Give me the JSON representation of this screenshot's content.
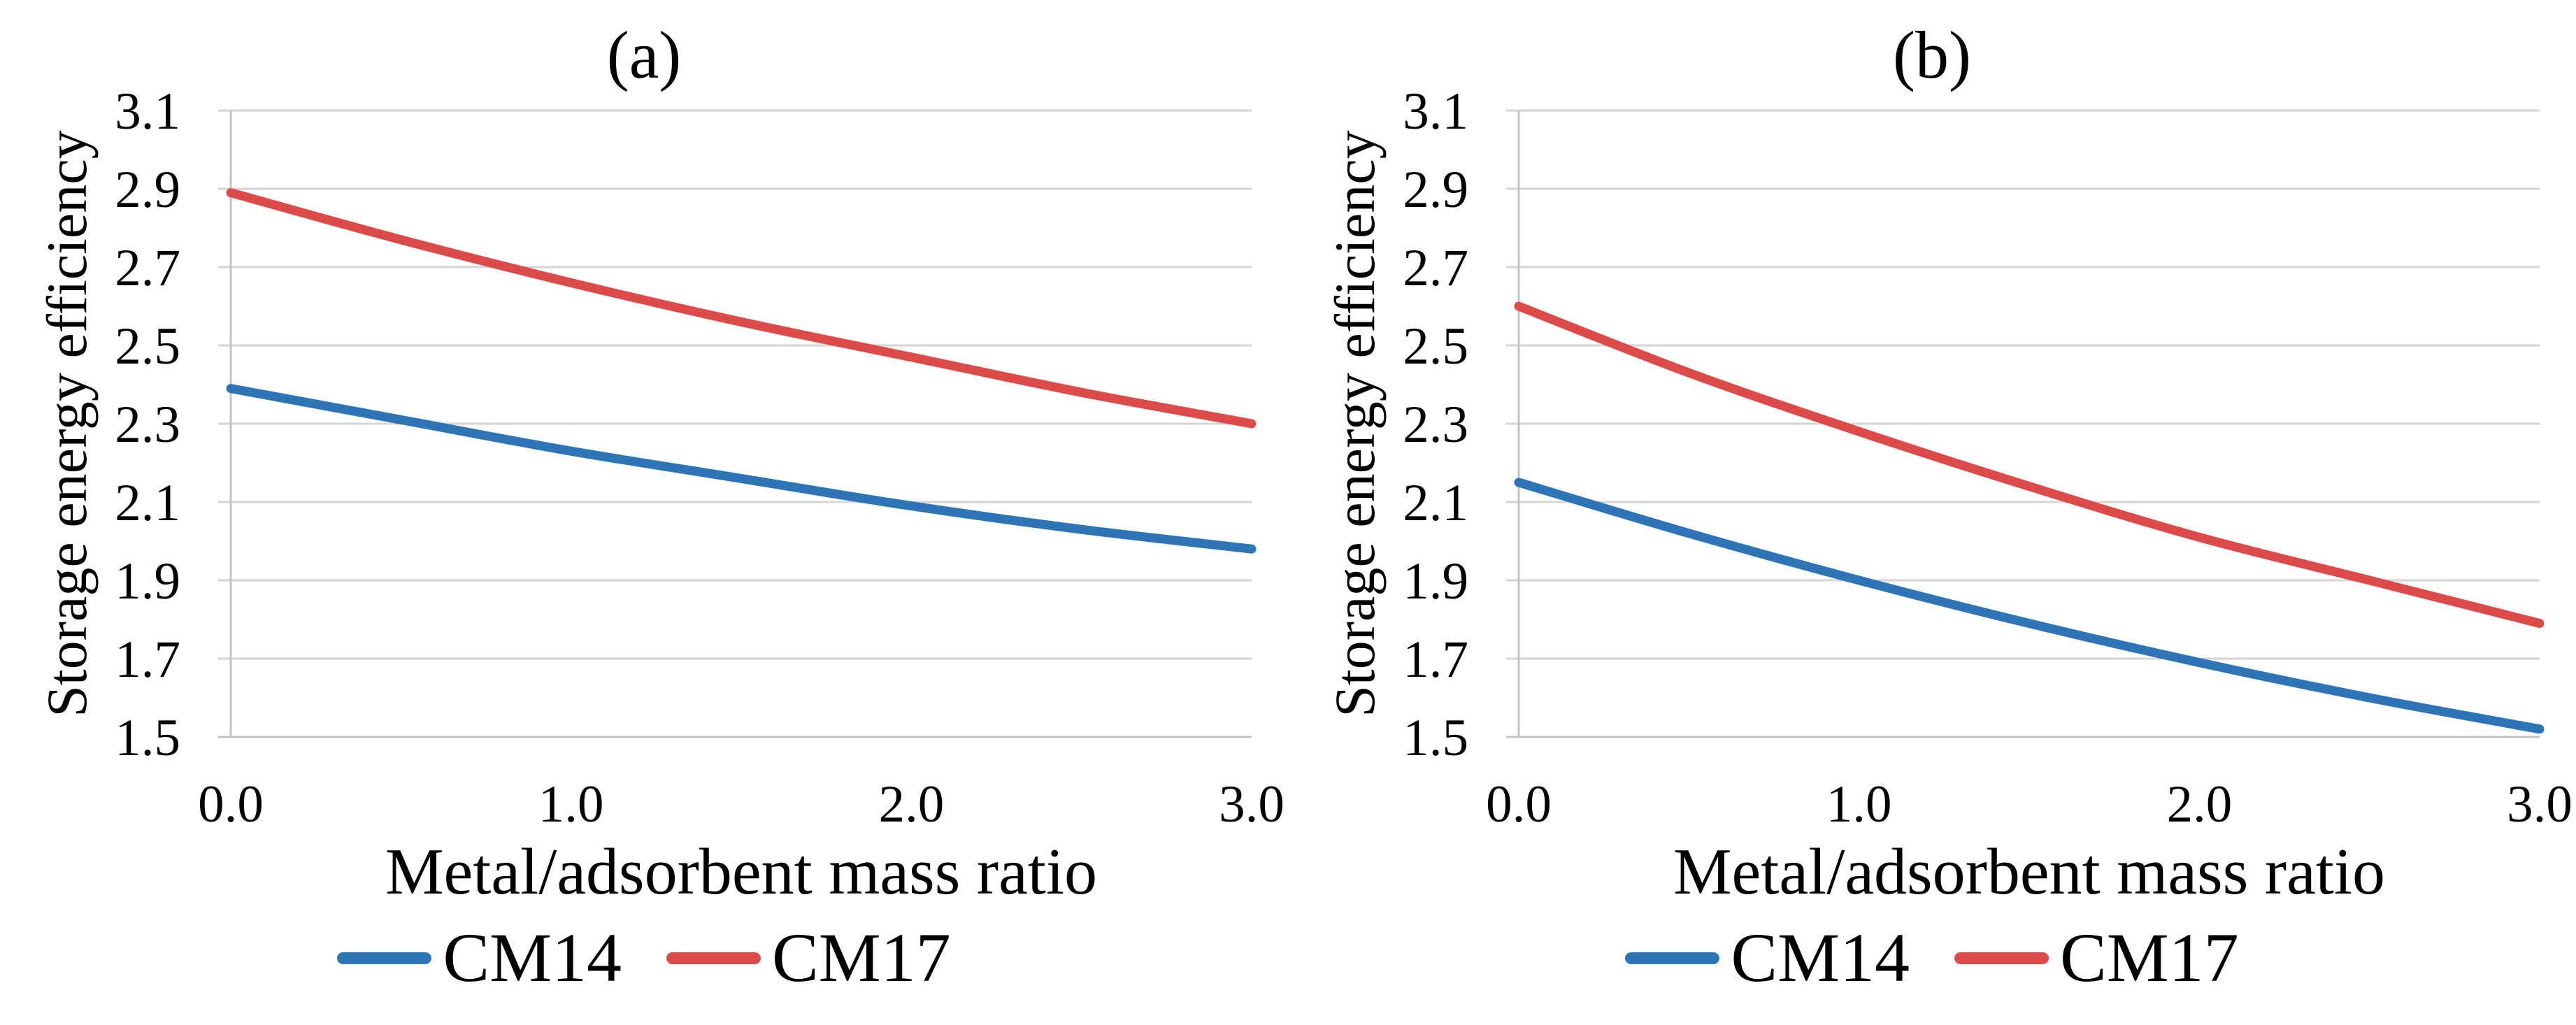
{
  "styles": {
    "background": "#ffffff",
    "text_color": "#000000",
    "gridline_color": "#d6d6d6",
    "axis_color": "#c3c3c3",
    "cm14_color": "#2e75b6",
    "cm17_color": "#dc4b49"
  },
  "chart_data": [
    {
      "type": "line",
      "title": "(a)",
      "xlabel": "Metal/adsorbent mass ratio",
      "ylabel": "Storage energy efficiency",
      "xlim": [
        0,
        3
      ],
      "ylim": [
        1.5,
        3.1
      ],
      "xticks": [
        "0.0",
        "1.0",
        "2.0",
        "3.0"
      ],
      "yticks": [
        "3.1",
        "2.9",
        "2.7",
        "2.5",
        "2.3",
        "2.1",
        "1.9",
        "1.7",
        "1.5"
      ],
      "grid": "horizontal",
      "legend_position": "bottom-center",
      "x": [
        0,
        0.5,
        1.0,
        1.5,
        2.0,
        2.5,
        3.0
      ],
      "series": [
        {
          "name": "CM14",
          "color": "#2e75b6",
          "values": [
            2.39,
            2.31,
            2.23,
            2.16,
            2.09,
            2.03,
            1.98
          ]
        },
        {
          "name": "CM17",
          "color": "#dc4b49",
          "values": [
            2.89,
            2.77,
            2.66,
            2.56,
            2.47,
            2.38,
            2.3
          ]
        }
      ]
    },
    {
      "type": "line",
      "title": "(b)",
      "xlabel": "Metal/adsorbent mass ratio",
      "ylabel": "Storage energy efficiency",
      "xlim": [
        0,
        3
      ],
      "ylim": [
        1.5,
        3.1
      ],
      "xticks": [
        "0.0",
        "1.0",
        "2.0",
        "3.0"
      ],
      "yticks": [
        "3.1",
        "2.9",
        "2.7",
        "2.5",
        "2.3",
        "2.1",
        "1.9",
        "1.7",
        "1.5"
      ],
      "grid": "horizontal",
      "legend_position": "bottom-center",
      "x": [
        0,
        0.5,
        1.0,
        1.5,
        2.0,
        2.5,
        3.0
      ],
      "series": [
        {
          "name": "CM14",
          "color": "#2e75b6",
          "values": [
            2.15,
            2.02,
            1.9,
            1.79,
            1.69,
            1.6,
            1.52
          ]
        },
        {
          "name": "CM17",
          "color": "#dc4b49",
          "values": [
            2.6,
            2.43,
            2.28,
            2.14,
            2.01,
            1.9,
            1.79
          ]
        }
      ]
    }
  ]
}
